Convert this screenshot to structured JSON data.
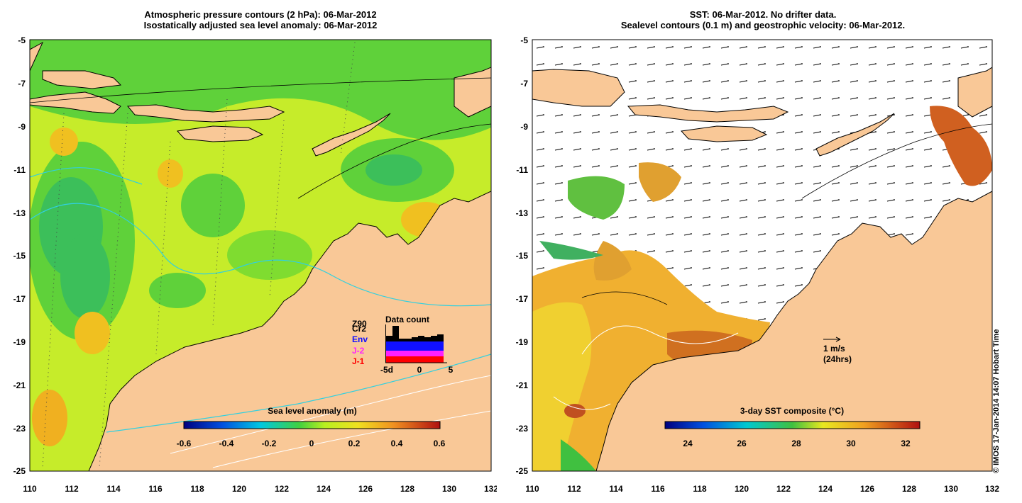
{
  "left_panel": {
    "title_line1": "Atmospheric pressure contours (2 hPa): 06-Mar-2012",
    "title_line2": "Isostatically adjusted sea level anomaly: 06-Mar-2012",
    "colorbar": {
      "title": "Sea level anomaly (m)",
      "ticks": [
        "-0.6",
        "-0.4",
        "-0.2",
        "0",
        "0.2",
        "0.4",
        "0.6"
      ],
      "range": [
        -0.6,
        0.6
      ]
    },
    "data_count": {
      "title": "Data count",
      "sources": [
        "Z90",
        "Cr2",
        "Env",
        "J-2",
        "J-1"
      ],
      "source_colors": [
        "#000000",
        "#000000",
        "#1010ff",
        "#ff20ff",
        "#ff0000"
      ],
      "axis_ticks": [
        "-5d",
        "0",
        "5"
      ]
    }
  },
  "right_panel": {
    "title_line1": "SST: 06-Mar-2012. No drifter data.",
    "title_line2": "Sealevel contours (0.1 m) and geostrophic velocity: 06-Mar-2012.",
    "colorbar": {
      "title": "3-day SST composite (°C)",
      "ticks": [
        "24",
        "26",
        "28",
        "30",
        "32"
      ],
      "range": [
        23,
        32.5
      ]
    },
    "velocity_scale": {
      "label": "1 m/s",
      "sublabel": "(24hrs)"
    }
  },
  "axes": {
    "x_ticks": [
      "110",
      "112",
      "114",
      "116",
      "118",
      "120",
      "122",
      "124",
      "126",
      "128",
      "130",
      "132"
    ],
    "y_ticks": [
      "-5",
      "-7",
      "-9",
      "-11",
      "-13",
      "-15",
      "-17",
      "-19",
      "-21",
      "-23",
      "-25"
    ],
    "lon_range": [
      110,
      132
    ],
    "lat_range": [
      -25,
      -5
    ]
  },
  "credit": "© IMOS 17-Jan-2014 14:07 Hobart Time",
  "colors": {
    "land": "#f9c897",
    "ocean_green": "#5fd13a",
    "ocean_yellow": "#d8ef2a"
  }
}
